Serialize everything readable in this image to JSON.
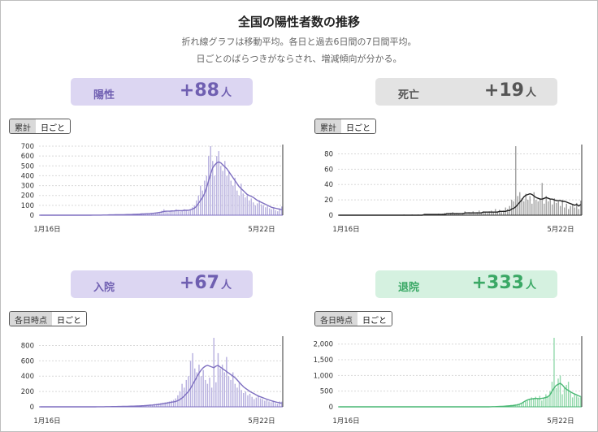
{
  "header": {
    "title": "全国の陽性者数の推移",
    "subtitle_1": "折れ線グラフは移動平均。各日と過去6日間の7日間平均。",
    "subtitle_2": "日ごとのばらつきがならされ、増減傾向が分かる。"
  },
  "panels": [
    {
      "key": "positive",
      "label": "陽性",
      "value": "+88",
      "unit": "人",
      "card_bg": "#dcd6f2",
      "card_text": "#6f5fb1",
      "toggle": [
        "累計",
        "日ごと"
      ],
      "color": "#7e6fc0",
      "bar_color": "#b7b0df"
    },
    {
      "key": "death",
      "label": "死亡",
      "value": "+19",
      "unit": "人",
      "card_bg": "#e3e3e3",
      "card_text": "#555555",
      "toggle": [
        "累計",
        "日ごと"
      ],
      "color": "#222222",
      "bar_color": "#9e9e9e"
    },
    {
      "key": "hospital",
      "label": "入院",
      "value": "+67",
      "unit": "人",
      "card_bg": "#dcd6f2",
      "card_text": "#6f5fb1",
      "toggle": [
        "各日時点",
        "日ごと"
      ],
      "color": "#7e6fc0",
      "bar_color": "#b7b0df"
    },
    {
      "key": "discharge",
      "label": "退院",
      "value": "+333",
      "unit": "人",
      "card_bg": "#d5f1e0",
      "card_text": "#3aa865",
      "toggle": [
        "各日時点",
        "日ごと"
      ],
      "color": "#49b774",
      "bar_color": "#92d8ab"
    }
  ],
  "chart_data": [
    {
      "type": "bar",
      "panel": "positive",
      "x_range": [
        "1月16日",
        "5月22日"
      ],
      "yticks": [
        "0",
        "100",
        "200",
        "300",
        "400",
        "500",
        "600",
        "700"
      ],
      "ylim": [
        0,
        700
      ],
      "series": [
        {
          "kind": "bar",
          "values": [
            0,
            0,
            0,
            0,
            0,
            0,
            0,
            0,
            0,
            0,
            0,
            0,
            0,
            0,
            0,
            0,
            0,
            0,
            0,
            0,
            0,
            0,
            0,
            0,
            0,
            0,
            1,
            1,
            2,
            1,
            2,
            2,
            2,
            3,
            3,
            3,
            4,
            5,
            5,
            4,
            6,
            6,
            8,
            8,
            6,
            8,
            10,
            12,
            10,
            12,
            14,
            14,
            16,
            18,
            17,
            20,
            22,
            25,
            30,
            35,
            45,
            60,
            45,
            30,
            40,
            50,
            45,
            60,
            40,
            35,
            45,
            60,
            50,
            40,
            50,
            80,
            100,
            150,
            200,
            300,
            250,
            350,
            400,
            600,
            700,
            550,
            400,
            600,
            650,
            500,
            450,
            550,
            400,
            450,
            350,
            300,
            380,
            250,
            200,
            320,
            220,
            180,
            200,
            150,
            170,
            130,
            100,
            120,
            150,
            110,
            100,
            80,
            90,
            70,
            60,
            80,
            50,
            40,
            70,
            88
          ]
        },
        {
          "kind": "line",
          "values": [
            0,
            0,
            0,
            0,
            0,
            0,
            0,
            0,
            0,
            0,
            0,
            0,
            0,
            0,
            0,
            0,
            0,
            0,
            0,
            0,
            0,
            0,
            0,
            0,
            0,
            0,
            1,
            1,
            1,
            1,
            1,
            2,
            2,
            2,
            3,
            3,
            3,
            4,
            4,
            4,
            5,
            5,
            6,
            7,
            7,
            7,
            8,
            9,
            10,
            11,
            12,
            13,
            14,
            15,
            16,
            18,
            20,
            22,
            25,
            28,
            32,
            38,
            40,
            40,
            41,
            43,
            44,
            46,
            47,
            45,
            46,
            49,
            50,
            49,
            55,
            62,
            72,
            90,
            120,
            150,
            180,
            220,
            280,
            350,
            420,
            480,
            510,
            530,
            540,
            530,
            510,
            490,
            470,
            440,
            410,
            380,
            350,
            320,
            290,
            270,
            250,
            230,
            210,
            200,
            190,
            180,
            165,
            150,
            140,
            130,
            120,
            110,
            100,
            90,
            80,
            75,
            70,
            65,
            60,
            55
          ]
        }
      ]
    },
    {
      "type": "bar",
      "panel": "death",
      "x_range": [
        "1月16日",
        "5月22日"
      ],
      "yticks": [
        "0",
        "20",
        "40",
        "60",
        "80"
      ],
      "ylim": [
        0,
        90
      ],
      "series": [
        {
          "kind": "bar",
          "values": [
            0,
            0,
            0,
            0,
            0,
            0,
            0,
            0,
            0,
            0,
            0,
            0,
            0,
            0,
            0,
            0,
            0,
            0,
            0,
            0,
            0,
            0,
            0,
            0,
            0,
            0,
            0,
            0,
            0,
            0,
            0,
            0,
            1,
            0,
            0,
            0,
            1,
            0,
            0,
            1,
            0,
            1,
            0,
            1,
            0,
            0,
            1,
            1,
            1,
            2,
            1,
            2,
            3,
            1,
            2,
            3,
            4,
            2,
            3,
            2,
            1,
            3,
            5,
            2,
            4,
            3,
            5,
            2,
            4,
            6,
            3,
            5,
            4,
            3,
            5,
            6,
            4,
            8,
            5,
            7,
            4,
            6,
            10,
            8,
            12,
            20,
            18,
            90,
            25,
            30,
            22,
            18,
            28,
            20,
            25,
            15,
            30,
            20,
            18,
            22,
            42,
            15,
            25,
            18,
            20,
            14,
            22,
            16,
            18,
            12,
            20,
            10,
            15,
            8,
            12,
            14,
            10,
            16,
            8,
            19
          ]
        },
        {
          "kind": "line",
          "values": [
            0,
            0,
            0,
            0,
            0,
            0,
            0,
            0,
            0,
            0,
            0,
            0,
            0,
            0,
            0,
            0,
            0,
            0,
            0,
            0,
            0,
            0,
            0,
            0,
            0,
            0,
            0,
            0,
            0,
            0,
            0,
            0,
            0,
            0,
            0,
            0,
            0,
            0,
            0,
            0,
            0,
            0,
            1,
            1,
            1,
            1,
            1,
            1,
            1,
            1,
            1,
            1,
            1,
            2,
            2,
            2,
            2,
            2,
            2,
            2,
            2,
            2,
            3,
            3,
            3,
            3,
            3,
            3,
            3,
            3,
            3,
            4,
            4,
            4,
            4,
            4,
            4,
            4,
            4,
            5,
            5,
            5,
            5,
            6,
            6,
            8,
            9,
            11,
            14,
            17,
            20,
            24,
            26,
            27,
            28,
            27,
            25,
            23,
            22,
            21,
            21,
            22,
            23,
            22,
            21,
            21,
            20,
            19,
            19,
            19,
            18,
            18,
            17,
            16,
            15,
            14,
            13,
            14,
            12,
            14
          ]
        }
      ]
    },
    {
      "type": "bar",
      "panel": "hospital",
      "x_range": [
        "1月16日",
        "5月22日"
      ],
      "yticks": [
        "0",
        "200",
        "400",
        "600",
        "800"
      ],
      "ylim": [
        0,
        900
      ],
      "series": [
        {
          "kind": "bar",
          "values": [
            0,
            0,
            0,
            0,
            0,
            0,
            0,
            0,
            0,
            0,
            0,
            0,
            0,
            0,
            0,
            0,
            0,
            0,
            0,
            0,
            0,
            0,
            0,
            0,
            0,
            0,
            0,
            1,
            1,
            2,
            1,
            2,
            2,
            3,
            3,
            4,
            4,
            5,
            6,
            5,
            7,
            8,
            8,
            10,
            12,
            14,
            15,
            18,
            16,
            20,
            22,
            25,
            30,
            28,
            35,
            40,
            45,
            50,
            55,
            60,
            65,
            70,
            80,
            90,
            110,
            150,
            200,
            300,
            250,
            350,
            400,
            600,
            700,
            500,
            450,
            550,
            400,
            480,
            350,
            300,
            380,
            250,
            950,
            320,
            700,
            500,
            550,
            450,
            650,
            400,
            350,
            450,
            300,
            250,
            320,
            220,
            180,
            200,
            150,
            170,
            130,
            100,
            120,
            150,
            110,
            100,
            80,
            90,
            70,
            60,
            80,
            50,
            40,
            70,
            67
          ]
        },
        {
          "kind": "line",
          "values": [
            0,
            0,
            0,
            0,
            0,
            0,
            0,
            0,
            0,
            0,
            0,
            0,
            0,
            0,
            0,
            0,
            0,
            0,
            0,
            0,
            0,
            0,
            0,
            0,
            0,
            0,
            0,
            1,
            1,
            1,
            1,
            2,
            2,
            2,
            3,
            3,
            3,
            4,
            4,
            5,
            5,
            6,
            7,
            8,
            9,
            10,
            11,
            12,
            14,
            15,
            17,
            19,
            21,
            23,
            26,
            29,
            32,
            36,
            40,
            45,
            50,
            55,
            60,
            65,
            70,
            80,
            95,
            115,
            140,
            170,
            200,
            240,
            290,
            340,
            390,
            440,
            480,
            510,
            530,
            540,
            530,
            520,
            510,
            530,
            540,
            520,
            500,
            480,
            460,
            440,
            420,
            400,
            380,
            350,
            320,
            290,
            260,
            240,
            220,
            200,
            185,
            170,
            155,
            140,
            130,
            120,
            110,
            100,
            90,
            80,
            72,
            65,
            58,
            52,
            47
          ]
        }
      ]
    },
    {
      "type": "bar",
      "panel": "discharge",
      "x_range": [
        "1月16日",
        "5月22日"
      ],
      "yticks": [
        "0",
        "500",
        "1,000",
        "1,500",
        "2,000"
      ],
      "ylim": [
        0,
        2200
      ],
      "series": [
        {
          "kind": "bar",
          "values": [
            0,
            0,
            0,
            0,
            0,
            0,
            0,
            0,
            0,
            0,
            0,
            0,
            0,
            0,
            0,
            0,
            0,
            0,
            0,
            0,
            0,
            0,
            0,
            0,
            0,
            0,
            0,
            0,
            0,
            0,
            0,
            0,
            0,
            0,
            0,
            0,
            0,
            0,
            0,
            0,
            0,
            0,
            0,
            0,
            0,
            0,
            0,
            0,
            0,
            0,
            0,
            0,
            0,
            0,
            0,
            0,
            0,
            0,
            0,
            0,
            0,
            0,
            0,
            0,
            0,
            0,
            0,
            0,
            0,
            0,
            0,
            0,
            0,
            0,
            5,
            8,
            10,
            15,
            20,
            25,
            30,
            35,
            40,
            50,
            60,
            70,
            80,
            90,
            100,
            110,
            150,
            180,
            200,
            250,
            300,
            280,
            320,
            250,
            350,
            200,
            300,
            400,
            350,
            500,
            800,
            2200,
            600,
            900,
            1000,
            400,
            600,
            700,
            800,
            500,
            300,
            400,
            350,
            300,
            333
          ]
        },
        {
          "kind": "line",
          "values": [
            0,
            0,
            0,
            0,
            0,
            0,
            0,
            0,
            0,
            0,
            0,
            0,
            0,
            0,
            0,
            0,
            0,
            0,
            0,
            0,
            0,
            0,
            0,
            0,
            0,
            0,
            0,
            0,
            0,
            0,
            0,
            0,
            0,
            0,
            0,
            0,
            0,
            0,
            0,
            0,
            0,
            0,
            0,
            0,
            0,
            0,
            0,
            0,
            0,
            0,
            0,
            0,
            0,
            0,
            0,
            0,
            0,
            0,
            0,
            0,
            0,
            0,
            0,
            0,
            0,
            0,
            0,
            0,
            0,
            0,
            0,
            0,
            0,
            0,
            2,
            4,
            6,
            8,
            10,
            13,
            16,
            20,
            25,
            30,
            35,
            40,
            50,
            60,
            80,
            110,
            150,
            190,
            220,
            240,
            250,
            260,
            270,
            265,
            260,
            270,
            280,
            300,
            320,
            380,
            500,
            600,
            680,
            720,
            750,
            700,
            620,
            560,
            520,
            480,
            440,
            410,
            380,
            350,
            330
          ]
        }
      ]
    }
  ]
}
